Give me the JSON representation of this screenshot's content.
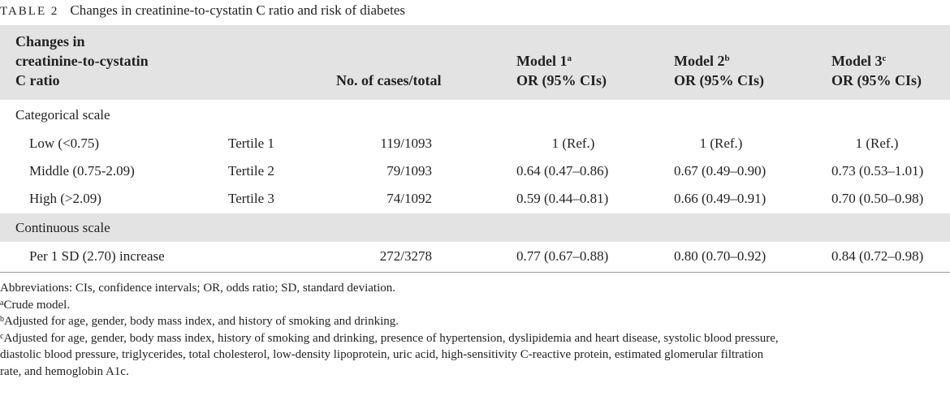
{
  "caption": {
    "label": "TABLE 2",
    "title": "Changes in creatinine-to-cystatin C ratio and risk of diabetes"
  },
  "header": {
    "col1_line1": "Changes in",
    "col1_line2": "creatinine-to-cystatin",
    "col1_line3": "C ratio",
    "col3": "No. of cases/total",
    "model1": "Model 1",
    "model1_sup": "a",
    "model2": "Model 2",
    "model2_sup": "b",
    "model3": "Model 3",
    "model3_sup": "c",
    "or_label": "OR (95% CIs)"
  },
  "sections": {
    "categorical": "Categorical scale",
    "continuous": "Continuous scale"
  },
  "rows": [
    {
      "group": "Low (<0.75)",
      "tertile": "Tertile 1",
      "cases": "119/1093",
      "m1": "1 (Ref.)",
      "m2": "1 (Ref.)",
      "m3": "1 (Ref.)"
    },
    {
      "group": "Middle (0.75-2.09)",
      "tertile": "Tertile 2",
      "cases": "79/1093",
      "m1": "0.64 (0.47–0.86)",
      "m2": "0.67 (0.49–0.90)",
      "m3": "0.73 (0.53–1.01)"
    },
    {
      "group": "High (>2.09)",
      "tertile": "Tertile 3",
      "cases": "74/1092",
      "m1": "0.59 (0.44–0.81)",
      "m2": "0.66 (0.49–0.91)",
      "m3": "0.70 (0.50–0.98)"
    },
    {
      "group": "Per 1 SD (2.70) increase",
      "tertile": "",
      "cases": "272/3278",
      "m1": "0.77 (0.67–0.88)",
      "m2": "0.80 (0.70–0.92)",
      "m3": "0.84 (0.72–0.98)"
    }
  ],
  "notes": {
    "abbrev": "Abbreviations: CIs, confidence intervals; OR, odds ratio; SD, standard deviation.",
    "a_mark": "a",
    "a_text": "Crude model.",
    "b_mark": "b",
    "b_text": "Adjusted for age, gender, body mass index, and history of smoking and drinking.",
    "c_mark": "c",
    "c_line1": "Adjusted for age, gender, body mass index, history of smoking and drinking, presence of hypertension, dyslipidemia and heart disease, systolic blood pressure,",
    "c_line2": "diastolic blood pressure, triglycerides, total cholesterol, low-density lipoprotein, uric acid, high-sensitivity C-reactive protein, estimated glomerular filtration",
    "c_line3": "rate, and hemoglobin A1c."
  }
}
